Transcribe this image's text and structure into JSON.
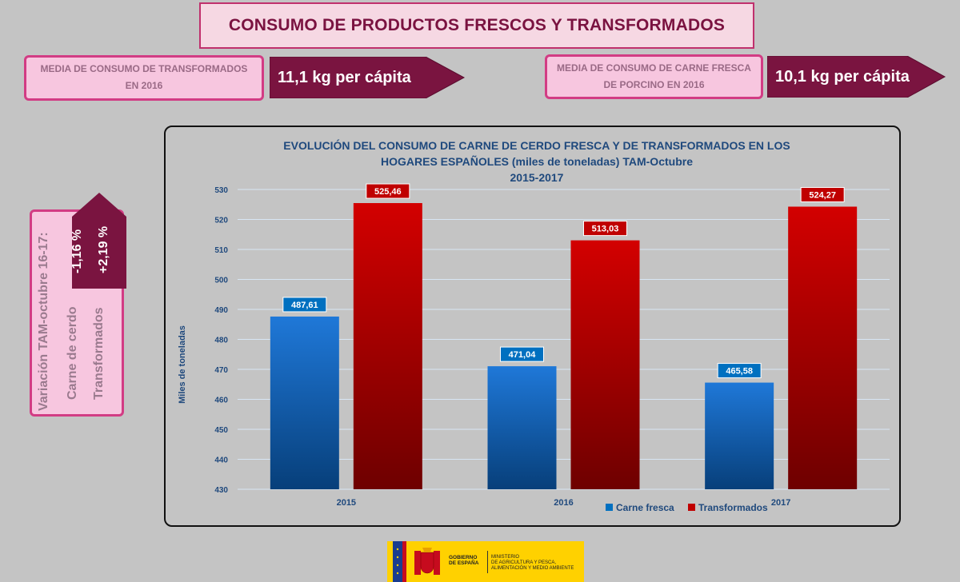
{
  "header": {
    "title": "CONSUMO DE PRODUCTOS FRESCOS Y TRANSFORMADOS"
  },
  "stats": [
    {
      "label_line1": "MEDIA DE CONSUMO  DE TRANSFORMADOS",
      "label_line2": "EN 2016",
      "value": "11,1 kg per cápita"
    },
    {
      "label_line1": "MEDIA DE CONSUMO DE CARNE FRESCA",
      "label_line2": "DE PORCINO EN 2016",
      "value": "10,1 kg per cápita"
    }
  ],
  "variation": {
    "heading": "Variación TAM-octubre 16-17:",
    "row1_label": "Carne de cerdo",
    "row2_label": "Transformados",
    "row1_value": "-1,16 %",
    "row2_value": "+2,19 %"
  },
  "colors": {
    "fresh": "#1f6fd0",
    "transformed": "#c00000",
    "accent": "#d23c84",
    "maroon": "#7a1440",
    "title_blue": "#1f497d"
  },
  "chart_data": {
    "type": "bar",
    "title_lines": [
      "EVOLUCIÓN DEL CONSUMO DE CARNE DE CERDO FRESCA Y DE TRANSFORMADOS EN LOS",
      "HOGARES ESPAÑOLES (miles de toneladas) TAM-Octubre",
      "2015-2017"
    ],
    "ylabel": "Miles de toneladas",
    "categories": [
      "2015",
      "2016",
      "2017"
    ],
    "ylim": [
      430,
      530
    ],
    "yticks": [
      430,
      440,
      450,
      460,
      470,
      480,
      490,
      500,
      510,
      520,
      530
    ],
    "series": [
      {
        "name": "Carne fresca",
        "values": [
          487.61,
          471.04,
          465.58
        ],
        "labels": [
          "487,61",
          "471,04",
          "465,58"
        ]
      },
      {
        "name": "Transformados",
        "values": [
          525.46,
          513.03,
          524.27
        ],
        "labels": [
          "525,46",
          "513,03",
          "524,27"
        ]
      }
    ],
    "grid": true,
    "legend_position": "bottom-right"
  },
  "footer": {
    "logo_gov_line1": "GOBIERNO",
    "logo_gov_line2": "DE ESPAÑA",
    "logo_min_line1": "MINISTERIO",
    "logo_min_line2": "DE AGRICULTURA Y PESCA,",
    "logo_min_line3": "ALIMENTACIÓN Y MEDIO AMBIENTE"
  }
}
